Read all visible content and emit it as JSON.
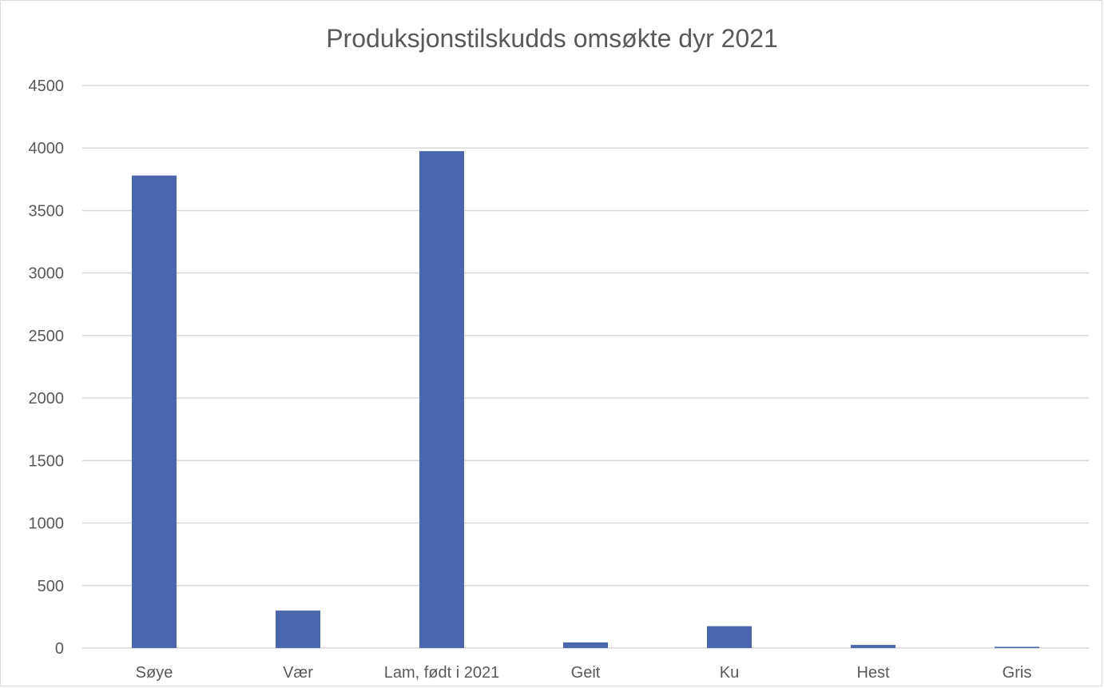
{
  "chart_data": {
    "type": "bar",
    "title": "Produksjonstilskudds omsøkte dyr 2021",
    "xlabel": "",
    "ylabel": "",
    "categories": [
      "Søye",
      "Vær",
      "Lam, født i 2021",
      "Geit",
      "Ku",
      "Hest",
      "Gris"
    ],
    "values": [
      3780,
      300,
      3975,
      45,
      175,
      25,
      10
    ],
    "ylim": [
      0,
      4500
    ],
    "yticks": [
      "0",
      "500",
      "1000",
      "1500",
      "2000",
      "2500",
      "3000",
      "3500",
      "4000",
      "4500"
    ],
    "grid": true,
    "legend": "none",
    "colors": {
      "bar": "#4a67ae",
      "grid": "#d9d9d9",
      "text": "#595959"
    }
  }
}
